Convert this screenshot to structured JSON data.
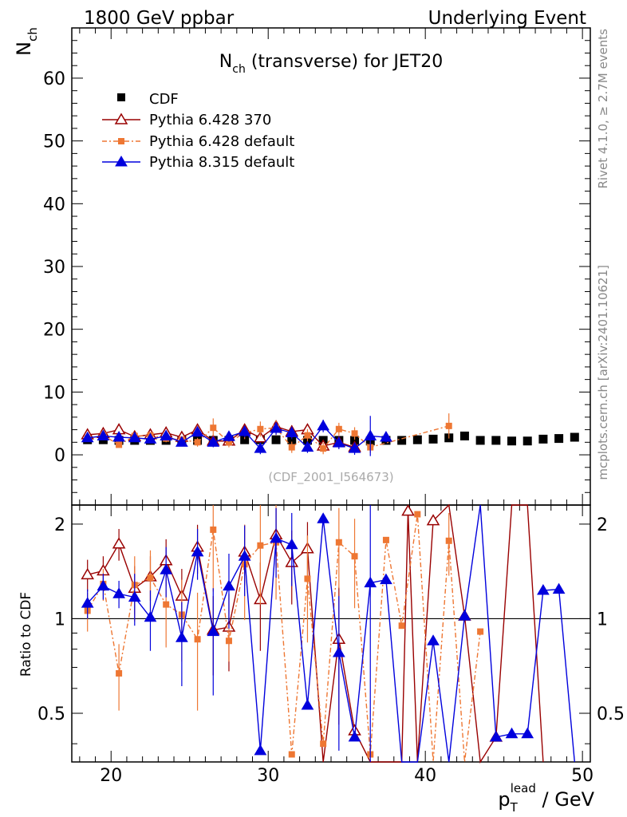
{
  "header": {
    "left": "1800 GeV ppbar",
    "right": "Underlying Event"
  },
  "side_labels": {
    "top": "Rivet 4.1.0, ≥ 2.7M events",
    "bottom": "mcplots.cern.ch [arXiv:2401.10621]"
  },
  "watermark": "(CDF_2001_I564673)",
  "chart_data": {
    "type": "scatter",
    "title_main": "N",
    "title_sub": "ch",
    "title_rest": " (transverse) for JET20",
    "ylabel_main": "N",
    "ylabel_sub": "ch",
    "xlabel_main": "p",
    "xlabel_sub": "T",
    "xlabel_sup": "lead",
    "xlabel_rest": " / GeV",
    "xlim": [
      17.5,
      50.5
    ],
    "ylim": [
      -8,
      68
    ],
    "xticks": [
      20,
      30,
      40,
      50
    ],
    "yticks": [
      0,
      10,
      20,
      30,
      40,
      50,
      60
    ],
    "ratio_ylabel": "Ratio to CDF",
    "ratio_ylim": [
      0.35,
      2.3
    ],
    "ratio_yticks": [
      {
        "v": 0.5,
        "label": "0.5"
      },
      {
        "v": 1,
        "label": "1"
      },
      {
        "v": 2,
        "label": "2"
      }
    ],
    "series": [
      {
        "name": "CDF",
        "color": "#000000",
        "marker": "square",
        "x": [
          18.5,
          19.5,
          20.5,
          21.5,
          22.5,
          23.5,
          24.5,
          25.5,
          26.5,
          27.5,
          28.5,
          29.5,
          30.5,
          31.5,
          32.5,
          33.5,
          34.5,
          35.5,
          36.5,
          37.5,
          38.5,
          39.5,
          40.5,
          41.5,
          42.5,
          43.5,
          44.5,
          45.5,
          46.5,
          47.5,
          48.5,
          49.5
        ],
        "y": [
          2.4,
          2.4,
          2.3,
          2.3,
          2.3,
          2.3,
          2.3,
          2.3,
          2.3,
          2.3,
          2.4,
          2.4,
          2.4,
          2.4,
          2.3,
          2.3,
          2.3,
          2.3,
          2.2,
          2.3,
          2.3,
          2.4,
          2.5,
          2.7,
          3.0,
          2.3,
          2.3,
          2.2,
          2.2,
          2.5,
          2.6,
          2.8
        ]
      },
      {
        "name": "Pythia 6.428 370",
        "color": "#990000",
        "marker": "triangle-open",
        "x": [
          18.5,
          19.5,
          20.5,
          21.5,
          22.5,
          23.5,
          24.5,
          25.5,
          26.5,
          27.5,
          28.5,
          29.5,
          30.5,
          31.5,
          32.5,
          33.5,
          34.5,
          35.5
        ],
        "y": [
          3.2,
          3.4,
          4.0,
          2.9,
          3.2,
          3.5,
          2.8,
          4.0,
          2.2,
          2.2,
          4.0,
          2.7,
          4.5,
          3.7,
          4.0,
          1.4,
          2.0,
          1.2
        ],
        "err": [
          0.4,
          0.4,
          0.5,
          0.5,
          0.5,
          0.6,
          0.6,
          0.7,
          0.6,
          0.6,
          0.9,
          0.9,
          1.0,
          1.0,
          0.9,
          0.9,
          0.9,
          0.9
        ],
        "ratio_x": [
          18.5,
          19.5,
          20.5,
          21.5,
          22.5,
          23.5,
          24.5,
          25.5,
          26.5,
          27.5,
          28.5,
          29.5,
          30.5,
          31.5,
          32.5,
          33.5,
          34.5,
          35.5,
          36.5,
          37.5,
          38.5,
          38.9,
          39.5,
          40.5,
          41.5,
          42.5,
          43.5,
          44.5,
          45.5,
          46.5,
          47.5
        ],
        "ratio_y": [
          1.38,
          1.42,
          1.73,
          1.25,
          1.36,
          1.53,
          1.18,
          1.69,
          0.92,
          0.94,
          1.63,
          1.15,
          1.85,
          1.51,
          1.67,
          0.3,
          0.86,
          0.44,
          0.3,
          0.3,
          0.3,
          2.2,
          0.3,
          2.05,
          2.5,
          1.02,
          0.3,
          0.42,
          2.5,
          2.5,
          0.3
        ],
        "ratio_err": [
          0.16,
          0.16,
          0.2,
          0.22,
          0.22,
          0.26,
          0.26,
          0.3,
          0.26,
          0.26,
          0.36,
          0.36,
          0.4,
          0.4,
          0.36,
          0,
          0.4,
          0,
          0,
          0,
          0,
          0,
          0,
          0,
          0,
          0,
          0,
          0,
          0,
          0,
          0
        ]
      },
      {
        "name": "Pythia 6.428 default",
        "color": "#ee7733",
        "marker": "square",
        "x": [
          18.5,
          19.5,
          20.5,
          21.5,
          22.5,
          23.5,
          24.5,
          25.5,
          26.5,
          27.5,
          28.5,
          29.5,
          30.5,
          31.5,
          32.5,
          33.5,
          34.5,
          35.5,
          36.5,
          41.5
        ],
        "y": [
          2.6,
          3.1,
          1.6,
          3.0,
          3.1,
          2.6,
          2.4,
          2.0,
          4.3,
          2.0,
          3.5,
          4.1,
          4.3,
          1.2,
          3.1,
          1.0,
          4.1,
          3.4,
          1.2,
          4.6
        ],
        "err": [
          0.4,
          0.4,
          0.4,
          0.5,
          0.5,
          0.6,
          0.6,
          0.7,
          1.5,
          0.8,
          1.0,
          1.2,
          1.2,
          0.9,
          1.0,
          0.9,
          1.0,
          1.0,
          0.9,
          2.0
        ],
        "ratio_x": [
          18.5,
          19.5,
          20.5,
          21.5,
          22.5,
          23.5,
          24.5,
          25.5,
          26.5,
          27.5,
          28.5,
          29.5,
          30.5,
          31.5,
          32.5,
          33.5,
          34.5,
          35.5,
          36.5,
          37.5,
          38.5,
          39.5,
          40.5,
          41.5,
          42.5,
          43.5
        ],
        "ratio_y": [
          1.06,
          1.29,
          0.67,
          1.28,
          1.35,
          1.11,
          1.03,
          0.86,
          1.92,
          0.85,
          1.49,
          1.71,
          1.75,
          0.37,
          1.34,
          0.4,
          1.75,
          1.58,
          0.37,
          1.78,
          0.95,
          2.15,
          0.3,
          1.77,
          0.3,
          0.91
        ],
        "ratio_err": [
          0.15,
          0.15,
          0.16,
          0.3,
          0.3,
          0.3,
          0.3,
          0.35,
          0.7,
          0.12,
          0.5,
          0.6,
          0.6,
          0,
          0.5,
          0,
          0.5,
          0.5,
          0,
          0,
          0,
          0,
          0,
          0.4,
          0,
          0
        ]
      },
      {
        "name": "Pythia 8.315 default",
        "color": "#0000dd",
        "marker": "triangle",
        "x": [
          18.5,
          19.5,
          20.5,
          21.5,
          22.5,
          23.5,
          24.5,
          25.5,
          26.5,
          27.5,
          28.5,
          29.5,
          30.5,
          31.5,
          32.5,
          33.5,
          34.5,
          35.5,
          36.5,
          37.5
        ],
        "y": [
          2.7,
          3.0,
          2.8,
          2.7,
          2.5,
          3.0,
          2.0,
          3.6,
          2.0,
          2.9,
          3.7,
          1.0,
          4.2,
          3.5,
          1.2,
          4.6,
          1.9,
          1.0,
          3.0,
          2.8
        ],
        "err": [
          0.4,
          0.4,
          0.4,
          0.5,
          0.5,
          0.6,
          0.6,
          0.7,
          0.8,
          0.8,
          0.9,
          0.9,
          1.0,
          1.0,
          0.9,
          1.0,
          1.0,
          1.0,
          3.2,
          0.8
        ],
        "ratio_x": [
          18.5,
          19.5,
          20.5,
          21.5,
          22.5,
          23.5,
          24.5,
          25.5,
          26.5,
          27.5,
          28.5,
          29.5,
          30.5,
          31.5,
          32.5,
          33.5,
          34.5,
          35.5,
          36.5,
          37.5,
          38.5,
          39.5,
          40.5,
          41.5,
          42.5,
          43.5,
          44.5,
          45.5,
          46.5,
          47.5,
          48.5,
          49.5
        ],
        "ratio_y": [
          1.12,
          1.27,
          1.2,
          1.17,
          1.01,
          1.43,
          0.87,
          1.63,
          0.91,
          1.27,
          1.58,
          0.38,
          1.8,
          1.72,
          0.53,
          2.08,
          0.78,
          0.42,
          1.3,
          1.33,
          0.3,
          0.3,
          0.85,
          0.3,
          1.02,
          2.5,
          0.42,
          0.43,
          0.43,
          1.23,
          1.24,
          0.3
        ],
        "ratio_err": [
          0.12,
          0.12,
          0.12,
          0.22,
          0.22,
          0.26,
          0.26,
          0.3,
          0.34,
          0.34,
          0.4,
          0,
          0.45,
          0.45,
          0,
          0,
          0.4,
          0,
          1.8,
          0,
          0,
          0,
          0,
          0,
          0,
          0,
          0,
          0,
          0,
          0,
          0,
          0
        ]
      }
    ]
  }
}
